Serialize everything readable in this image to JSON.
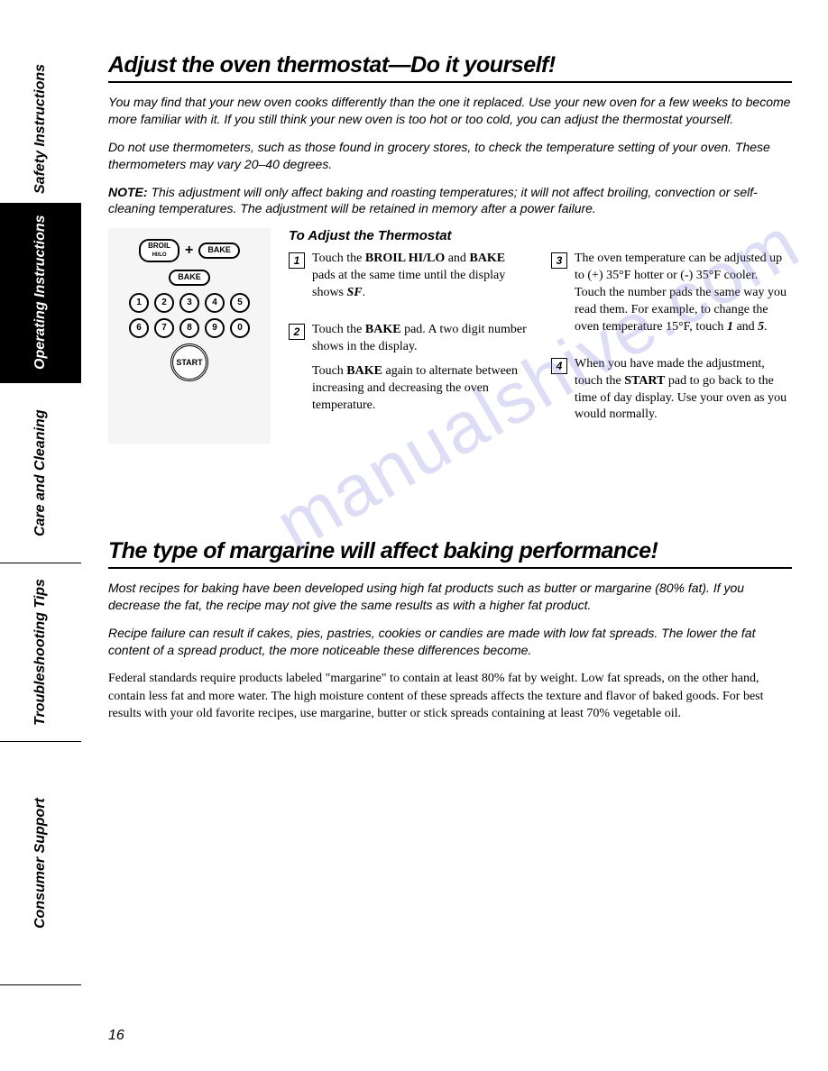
{
  "pageNumber": "16",
  "sidebar": {
    "tabs": [
      {
        "label": "Safety Instructions",
        "active": false
      },
      {
        "label": "Operating Instructions",
        "active": true
      },
      {
        "label": "Care and Cleaning",
        "active": false
      },
      {
        "label": "Troubleshooting Tips",
        "active": false
      },
      {
        "label": "Consumer Support",
        "active": false
      }
    ]
  },
  "section1": {
    "title": "Adjust the oven thermostat—Do it yourself!",
    "intro1": "You may find that your new oven cooks differently than the one it replaced. Use your new oven for a few weeks to become more familiar with it. If you still think your new oven is too hot or too cold, you can adjust the thermostat yourself.",
    "intro2": "Do not use thermometers, such as those found in grocery stores, to check the temperature setting of your oven. These thermometers may vary 20–40 degrees.",
    "note_label": "NOTE:",
    "note_text": " This adjustment will only affect baking and roasting temperatures; it will not affect broiling, convection or self-cleaning temperatures. The adjustment will be retained in memory after a power failure.",
    "subhead": "To Adjust the Thermostat",
    "panel": {
      "broil_label": "BROIL",
      "broil_sub": "HI/LO",
      "bake_label": "BAKE",
      "plus": "+",
      "numbers_row1": [
        "1",
        "2",
        "3",
        "4",
        "5"
      ],
      "numbers_row2": [
        "6",
        "7",
        "8",
        "9",
        "0"
      ],
      "start": "START"
    },
    "step1_pre": "Touch the ",
    "step1_b1": "BROIL HI/LO",
    "step1_mid": " and ",
    "step1_b2": "BAKE",
    "step1_post": " pads at the same time until the display shows ",
    "step1_sf": "SF",
    "step1_dot": ".",
    "step2a_pre": "Touch the ",
    "step2a_b": "BAKE",
    "step2a_post": " pad. A two digit number shows in the display.",
    "step2b_pre": "Touch ",
    "step2b_b": "BAKE",
    "step2b_post": " again to alternate between increasing and decreasing the oven temperature.",
    "step3_pre": "The oven temperature can be adjusted up to (+) 35°F hotter or (-) 35°F cooler. Touch the number pads the same way you read them. For example, to change the oven temperature 15°F, touch ",
    "step3_b1": "1",
    "step3_and": " and ",
    "step3_b2": "5",
    "step3_dot": ".",
    "step4_pre": "When you have made the adjustment, touch the ",
    "step4_b": "START",
    "step4_post": " pad to go back to the time of day display. Use your oven as you would normally."
  },
  "section2": {
    "title": "The type of margarine will affect baking performance!",
    "intro1": "Most recipes for baking have been developed using high fat products such as butter or margarine (80% fat). If you decrease the fat, the recipe may not give the same results as with a higher fat product.",
    "intro2": "Recipe failure can result if cakes, pies, pastries, cookies or candies are made with low fat spreads. The lower the fat content of a spread product, the more noticeable these differences become.",
    "body": "Federal standards require products labeled \"margarine\" to contain at least 80% fat by weight. Low fat spreads, on the other hand, contain less fat and more water. The high moisture content of these spreads affects the texture and flavor of baked goods. For best results with your old favorite recipes, use margarine, butter or stick spreads containing at least 70% vegetable oil."
  },
  "watermark_text": "manualshive.com"
}
